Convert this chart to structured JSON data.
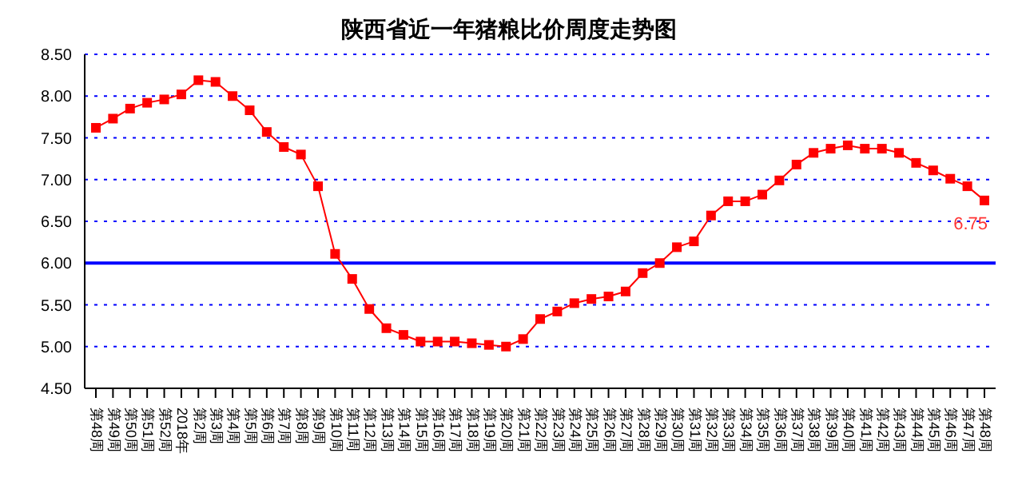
{
  "chart_data": {
    "type": "line",
    "title": "陕西省近一年猪粮比价周度走势图",
    "categories": [
      "第48周",
      "第49周",
      "第50周",
      "第51周",
      "第52周",
      "2018年",
      "第2周",
      "第3周",
      "第4周",
      "第5周",
      "第6周",
      "第7周",
      "第8周",
      "第9周",
      "第10周",
      "第11周",
      "第12周",
      "第13周",
      "第14周",
      "第15周",
      "第16周",
      "第17周",
      "第18周",
      "第19周",
      "第20周",
      "第21周",
      "第22周",
      "第23周",
      "第24周",
      "第25周",
      "第26周",
      "第27周",
      "第28周",
      "第29周",
      "第30周",
      "第31周",
      "第32周",
      "第33周",
      "第34周",
      "第35周",
      "第36周",
      "第37周",
      "第38周",
      "第39周",
      "第40周",
      "第41周",
      "第42周",
      "第43周",
      "第44周",
      "第45周",
      "第46周",
      "第47周",
      "第48周"
    ],
    "series": [
      {
        "color": "#ff0000",
        "values": [
          7.62,
          7.73,
          7.85,
          7.92,
          7.96,
          8.02,
          8.19,
          8.17,
          8.0,
          7.83,
          7.57,
          7.39,
          7.3,
          6.92,
          6.11,
          5.81,
          5.45,
          5.22,
          5.14,
          5.06,
          5.06,
          5.06,
          5.04,
          5.02,
          5.0,
          5.09,
          5.33,
          5.42,
          5.52,
          5.57,
          5.6,
          5.66,
          5.88,
          6.0,
          6.19,
          6.26,
          6.57,
          6.74,
          6.74,
          6.82,
          6.99,
          7.18,
          7.32,
          7.37,
          7.41,
          7.37,
          7.37,
          7.32,
          7.2,
          7.11,
          7.01,
          6.92,
          6.75
        ],
        "value_labels": [
          null,
          null,
          null,
          null,
          null,
          null,
          null,
          null,
          null,
          null,
          null,
          null,
          null,
          null,
          null,
          null,
          null,
          null,
          null,
          null,
          null,
          null,
          null,
          null,
          null,
          null,
          null,
          null,
          null,
          null,
          null,
          null,
          null,
          null,
          null,
          null,
          null,
          null,
          null,
          null,
          null,
          null,
          null,
          null,
          null,
          null,
          null,
          null,
          null,
          null,
          null,
          null,
          "6.75"
        ]
      }
    ],
    "ylim": [
      4.5,
      8.5
    ],
    "yticks": [
      {
        "value": 4.5,
        "label": "4.50"
      },
      {
        "value": 5,
        "label": "5.00"
      },
      {
        "value": 5.5,
        "label": "5.50"
      },
      {
        "value": 6,
        "label": "6.00"
      },
      {
        "value": 6.5,
        "label": "6.50"
      },
      {
        "value": 7,
        "label": "7.00"
      },
      {
        "value": 7.5,
        "label": "7.50"
      },
      {
        "value": 8,
        "label": "8.00"
      },
      {
        "value": 8.5,
        "label": "8.50"
      }
    ],
    "grid": "y",
    "marker": "square",
    "ref_lines": [
      {
        "axis": "y",
        "value": 6,
        "color": "#0000ff"
      }
    ]
  }
}
